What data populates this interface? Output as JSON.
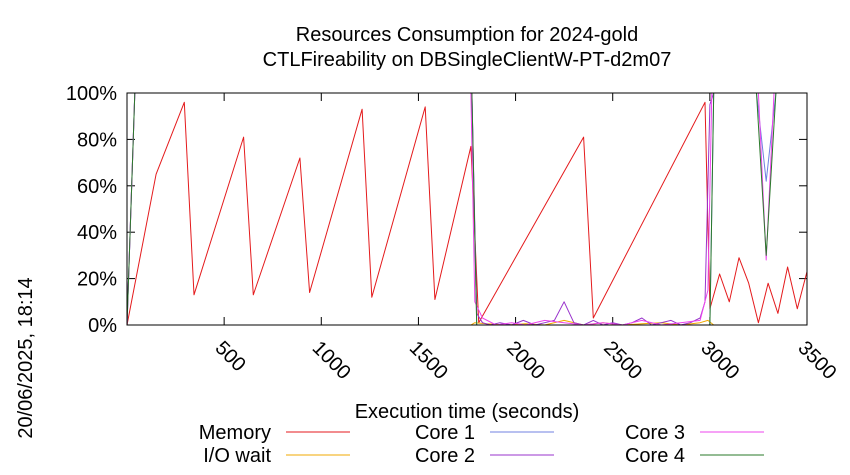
{
  "chart_data": {
    "type": "line",
    "title": "Resources Consumption for 2024-gold",
    "subtitle": "CTLFireability on DBSingleClientW-PT-d2m07",
    "xlabel": "Execution time (seconds)",
    "ylabel": "",
    "xlim": [
      0,
      3500
    ],
    "ylim": [
      0,
      100
    ],
    "x_ticks": [
      500,
      1000,
      1500,
      2000,
      2500,
      3000,
      3500
    ],
    "y_ticks": [
      0,
      20,
      40,
      60,
      80,
      100
    ],
    "y_tick_labels": [
      "0%",
      "20%",
      "40%",
      "60%",
      "80%",
      "100%"
    ],
    "grid": false,
    "legend_position": "bottom",
    "timestamp": "20/06/2025, 18:14",
    "colors": {
      "Memory": "#e41a1c",
      "I/O wait": "#f2a900",
      "Core 1": "#7080e0",
      "Core 2": "#9933cc",
      "Core 3": "#ee44ee",
      "Core 4": "#2a7a2a"
    },
    "legend_order": [
      "Memory",
      "I/O wait",
      "Core 1",
      "Core 2",
      "Core 3",
      "Core 4"
    ],
    "series": [
      {
        "name": "Memory",
        "x": [
          0,
          150,
          295,
          345,
          600,
          650,
          890,
          940,
          1210,
          1260,
          1535,
          1585,
          1770,
          1810,
          2350,
          2400,
          2975,
          3000,
          3050,
          3100,
          3150,
          3200,
          3250,
          3300,
          3350,
          3400,
          3450,
          3500
        ],
        "y": [
          0,
          65,
          96,
          13,
          81,
          13,
          72,
          14,
          93,
          12,
          94,
          11,
          77,
          1,
          81,
          3,
          96,
          7,
          22,
          10,
          29,
          18,
          1,
          18,
          5,
          25,
          7,
          23
        ]
      },
      {
        "name": "I/O wait",
        "x": [
          0,
          1770,
          1790,
          1850,
          1950,
          2050,
          2150,
          2250,
          2350,
          2450,
          2550,
          2650,
          2750,
          2850,
          2950,
          2990,
          3020,
          3500
        ],
        "y": [
          0,
          0,
          1,
          0.5,
          0,
          0.5,
          0,
          2,
          0,
          1,
          0,
          0.5,
          1,
          0,
          1,
          2,
          0,
          0
        ]
      },
      {
        "name": "Core 1",
        "x": [
          0,
          40,
          1775,
          1800,
          3000,
          3020,
          3240,
          3290,
          3340,
          3500
        ],
        "y": [
          0,
          100,
          100,
          0,
          0,
          100,
          100,
          62,
          100,
          100
        ]
      },
      {
        "name": "Core 2",
        "x": [
          0,
          40,
          1775,
          1800,
          1830,
          1870,
          1920,
          1980,
          2040,
          2100,
          2150,
          2200,
          2250,
          2300,
          2350,
          2400,
          2450,
          2500,
          2550,
          2600,
          2650,
          2700,
          2750,
          2800,
          2850,
          2900,
          2950,
          2975,
          3000,
          3020,
          3500
        ],
        "y": [
          0,
          100,
          100,
          5,
          1,
          0,
          1,
          0,
          2,
          0,
          1,
          2,
          10,
          1,
          0,
          2,
          0,
          1,
          0,
          1,
          3,
          0,
          1,
          2,
          0,
          1,
          3,
          10,
          95,
          100,
          100
        ]
      },
      {
        "name": "Core 3",
        "x": [
          0,
          40,
          1770,
          1790,
          1830,
          1900,
          1980,
          2050,
          2150,
          2250,
          2350,
          2450,
          2550,
          2650,
          2750,
          2850,
          2950,
          2990,
          3010,
          3250,
          3290,
          3330,
          3500
        ],
        "y": [
          0,
          100,
          100,
          10,
          3,
          0,
          1,
          0,
          2,
          1,
          0,
          1,
          0,
          2,
          0,
          1,
          2,
          15,
          100,
          100,
          28,
          100,
          100
        ]
      },
      {
        "name": "Core 4",
        "x": [
          0,
          40,
          1775,
          1800,
          3000,
          3020,
          3240,
          3290,
          3340,
          3500
        ],
        "y": [
          0,
          100,
          100,
          0,
          0,
          100,
          100,
          30,
          100,
          100
        ]
      }
    ]
  }
}
